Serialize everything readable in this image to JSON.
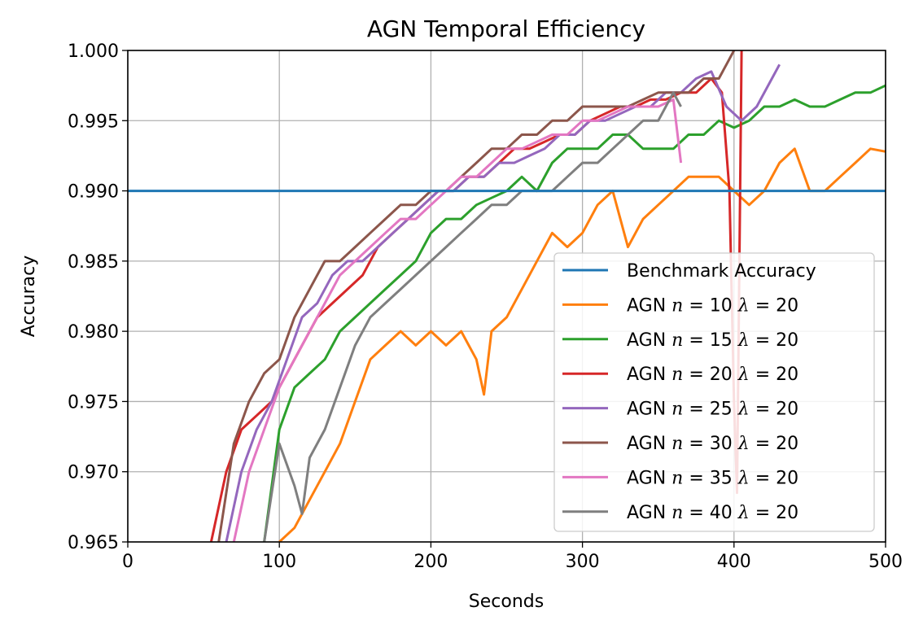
{
  "chart_data": {
    "type": "line",
    "title": "AGN Temporal Efficiency",
    "xlabel": "Seconds",
    "ylabel": "Accuracy",
    "xlim": [
      0,
      500
    ],
    "ylim": [
      0.965,
      1.0
    ],
    "xticks": [
      "0",
      "100",
      "200",
      "300",
      "400",
      "500"
    ],
    "yticks": [
      "0.965",
      "0.970",
      "0.975",
      "0.980",
      "0.985",
      "0.990",
      "0.995",
      "1.000"
    ],
    "grid": true,
    "legend_position": "lower-right",
    "series": [
      {
        "name": "Benchmark Accuracy",
        "prefix": "Benchmark Accuracy",
        "n": "",
        "lambda": "",
        "color": "#1f77b4",
        "x": [
          0,
          500
        ],
        "y": [
          0.99,
          0.99
        ]
      },
      {
        "name": "AGN n=10 λ=20",
        "prefix": "AGN ",
        "n": "10",
        "lambda": "20",
        "color": "#ff7f0e",
        "x": [
          100,
          110,
          120,
          130,
          140,
          150,
          160,
          170,
          180,
          190,
          200,
          210,
          220,
          230,
          235,
          240,
          250,
          260,
          270,
          280,
          290,
          300,
          310,
          320,
          330,
          340,
          350,
          360,
          370,
          380,
          390,
          400,
          410,
          420,
          430,
          440,
          450,
          460,
          470,
          480,
          490,
          500
        ],
        "y": [
          0.965,
          0.966,
          0.968,
          0.97,
          0.972,
          0.975,
          0.978,
          0.979,
          0.98,
          0.979,
          0.98,
          0.979,
          0.98,
          0.978,
          0.9755,
          0.98,
          0.981,
          0.983,
          0.985,
          0.987,
          0.986,
          0.987,
          0.989,
          0.99,
          0.986,
          0.988,
          0.989,
          0.99,
          0.991,
          0.991,
          0.991,
          0.99,
          0.989,
          0.99,
          0.992,
          0.993,
          0.99,
          0.99,
          0.991,
          0.992,
          0.993,
          0.9928
        ]
      },
      {
        "name": "AGN n=15 λ=20",
        "prefix": "AGN ",
        "n": "15",
        "lambda": "20",
        "color": "#2ca02c",
        "x": [
          90,
          100,
          110,
          120,
          130,
          140,
          150,
          160,
          170,
          180,
          190,
          200,
          210,
          220,
          230,
          240,
          250,
          260,
          270,
          280,
          290,
          300,
          310,
          320,
          330,
          340,
          350,
          360,
          370,
          380,
          390,
          400,
          410,
          420,
          430,
          440,
          450,
          460,
          470,
          480,
          490,
          500
        ],
        "y": [
          0.965,
          0.973,
          0.976,
          0.977,
          0.978,
          0.98,
          0.981,
          0.982,
          0.983,
          0.984,
          0.985,
          0.987,
          0.988,
          0.988,
          0.989,
          0.9895,
          0.99,
          0.991,
          0.99,
          0.992,
          0.993,
          0.993,
          0.993,
          0.994,
          0.994,
          0.993,
          0.993,
          0.993,
          0.994,
          0.994,
          0.995,
          0.9945,
          0.995,
          0.996,
          0.996,
          0.9965,
          0.996,
          0.996,
          0.9965,
          0.997,
          0.997,
          0.9975
        ]
      },
      {
        "name": "AGN n=20 λ=20",
        "prefix": "AGN ",
        "n": "20",
        "lambda": "20",
        "color": "#d62728",
        "x": [
          55,
          65,
          75,
          85,
          95,
          105,
          115,
          125,
          135,
          145,
          155,
          165,
          175,
          185,
          195,
          205,
          215,
          225,
          235,
          245,
          255,
          265,
          275,
          285,
          295,
          305,
          315,
          325,
          335,
          345,
          355,
          365,
          375,
          385,
          392,
          397,
          400,
          402,
          405
        ],
        "y": [
          0.965,
          0.97,
          0.973,
          0.974,
          0.975,
          0.977,
          0.979,
          0.981,
          0.982,
          0.983,
          0.984,
          0.986,
          0.987,
          0.988,
          0.989,
          0.99,
          0.99,
          0.991,
          0.991,
          0.992,
          0.993,
          0.993,
          0.9935,
          0.994,
          0.994,
          0.995,
          0.9955,
          0.996,
          0.996,
          0.9965,
          0.9965,
          0.997,
          0.997,
          0.998,
          0.997,
          0.99,
          0.975,
          0.9685,
          1.0
        ]
      },
      {
        "name": "AGN n=25 λ=20",
        "prefix": "AGN ",
        "n": "25",
        "lambda": "20",
        "color": "#9467bd",
        "x": [
          65,
          75,
          85,
          95,
          105,
          115,
          125,
          135,
          145,
          155,
          165,
          175,
          185,
          195,
          205,
          215,
          225,
          235,
          245,
          255,
          265,
          275,
          285,
          295,
          305,
          315,
          325,
          335,
          345,
          355,
          365,
          375,
          385,
          395,
          405,
          415,
          425,
          430
        ],
        "y": [
          0.965,
          0.97,
          0.973,
          0.975,
          0.978,
          0.981,
          0.982,
          0.984,
          0.985,
          0.985,
          0.986,
          0.987,
          0.988,
          0.989,
          0.99,
          0.99,
          0.991,
          0.991,
          0.992,
          0.992,
          0.9925,
          0.993,
          0.994,
          0.994,
          0.995,
          0.995,
          0.9955,
          0.996,
          0.996,
          0.997,
          0.997,
          0.998,
          0.9985,
          0.996,
          0.995,
          0.996,
          0.998,
          0.999
        ]
      },
      {
        "name": "AGN n=30 λ=20",
        "prefix": "AGN ",
        "n": "30",
        "lambda": "20",
        "color": "#8c564b",
        "x": [
          60,
          70,
          80,
          90,
          100,
          110,
          120,
          130,
          140,
          150,
          160,
          170,
          180,
          190,
          200,
          210,
          220,
          230,
          240,
          250,
          260,
          270,
          280,
          290,
          300,
          310,
          320,
          330,
          340,
          350,
          360,
          370,
          380,
          390,
          395,
          400
        ],
        "y": [
          0.965,
          0.972,
          0.975,
          0.977,
          0.978,
          0.981,
          0.983,
          0.985,
          0.985,
          0.986,
          0.987,
          0.988,
          0.989,
          0.989,
          0.99,
          0.99,
          0.991,
          0.992,
          0.993,
          0.993,
          0.994,
          0.994,
          0.995,
          0.995,
          0.996,
          0.996,
          0.996,
          0.996,
          0.9965,
          0.997,
          0.997,
          0.997,
          0.998,
          0.998,
          0.999,
          1.0
        ]
      },
      {
        "name": "AGN n=35 λ=20",
        "prefix": "AGN ",
        "n": "35",
        "lambda": "20",
        "color": "#e377c2",
        "x": [
          70,
          80,
          90,
          100,
          110,
          120,
          130,
          140,
          150,
          160,
          170,
          180,
          190,
          200,
          210,
          220,
          230,
          240,
          250,
          260,
          270,
          280,
          290,
          300,
          310,
          320,
          330,
          340,
          350,
          360,
          365
        ],
        "y": [
          0.965,
          0.97,
          0.973,
          0.976,
          0.978,
          0.98,
          0.982,
          0.984,
          0.985,
          0.986,
          0.987,
          0.988,
          0.988,
          0.989,
          0.99,
          0.991,
          0.991,
          0.992,
          0.993,
          0.993,
          0.9935,
          0.994,
          0.994,
          0.995,
          0.995,
          0.9955,
          0.996,
          0.996,
          0.996,
          0.9965,
          0.992
        ]
      },
      {
        "name": "AGN n=40 λ=20",
        "prefix": "AGN ",
        "n": "40",
        "lambda": "20",
        "color": "#7f7f7f",
        "x": [
          90,
          100,
          110,
          115,
          120,
          130,
          140,
          150,
          160,
          170,
          180,
          190,
          200,
          210,
          220,
          230,
          240,
          250,
          260,
          270,
          280,
          290,
          300,
          310,
          320,
          330,
          340,
          350,
          360,
          365
        ],
        "y": [
          0.965,
          0.972,
          0.969,
          0.967,
          0.971,
          0.973,
          0.976,
          0.979,
          0.981,
          0.982,
          0.983,
          0.984,
          0.985,
          0.986,
          0.987,
          0.988,
          0.989,
          0.989,
          0.99,
          0.99,
          0.99,
          0.991,
          0.992,
          0.992,
          0.993,
          0.994,
          0.995,
          0.995,
          0.997,
          0.996
        ]
      }
    ]
  }
}
